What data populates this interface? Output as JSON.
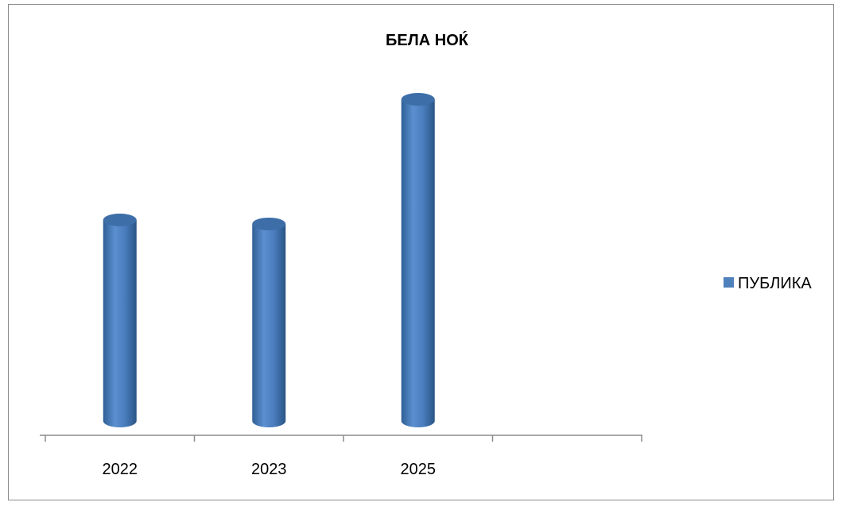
{
  "chart_data": {
    "type": "bar",
    "title": "БЕЛА НОЌ",
    "categories": [
      "2022",
      "2023",
      "2025",
      ""
    ],
    "series": [
      {
        "name": "ПУБЛИКА",
        "values": [
          1.0,
          0.98,
          1.6,
          null
        ],
        "color": "#4f81bd"
      }
    ],
    "grid": false,
    "legend_position": "right",
    "bar_style": "3d-cylinder"
  }
}
